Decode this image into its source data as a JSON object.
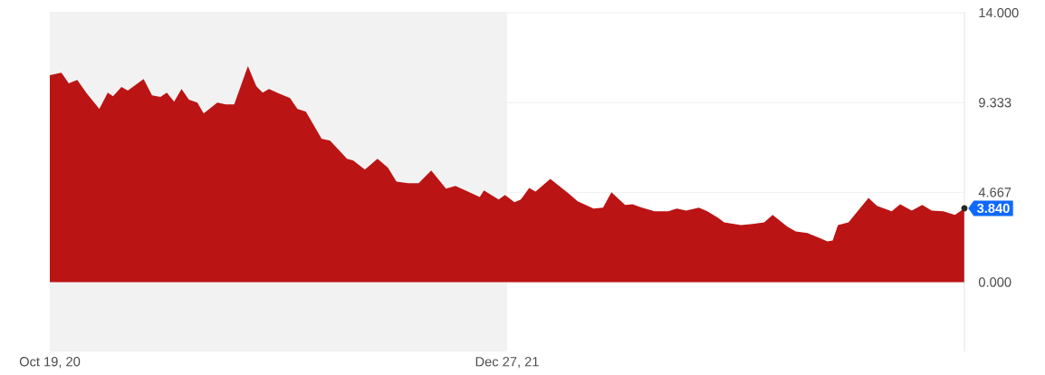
{
  "chart_data": {
    "type": "area",
    "color": "#bb1414",
    "x": [
      "2020-10-19",
      "2020-10-30",
      "2020-11-06",
      "2020-11-14",
      "2020-11-23",
      "2020-12-05",
      "2020-12-13",
      "2020-12-18",
      "2020-12-26",
      "2021-01-01",
      "2021-01-16",
      "2021-01-24",
      "2021-02-01",
      "2021-02-07",
      "2021-02-14",
      "2021-02-21",
      "2021-02-28",
      "2021-03-08",
      "2021-03-14",
      "2021-03-27",
      "2021-04-04",
      "2021-04-12",
      "2021-04-25",
      "2021-05-03",
      "2021-05-09",
      "2021-05-15",
      "2021-05-24",
      "2021-06-04",
      "2021-06-11",
      "2021-06-19",
      "2021-07-04",
      "2021-07-12",
      "2021-07-28",
      "2021-08-03",
      "2021-08-14",
      "2021-08-26",
      "2021-09-05",
      "2021-09-13",
      "2021-09-24",
      "2021-10-04",
      "2021-10-16",
      "2021-10-30",
      "2021-11-08",
      "2021-12-01",
      "2021-12-05",
      "2021-12-19",
      "2021-12-25",
      "2022-01-03",
      "2022-01-09",
      "2022-01-17",
      "2022-01-23",
      "2022-02-06",
      "2022-02-23",
      "2022-03-04",
      "2022-03-19",
      "2022-03-28",
      "2022-04-05",
      "2022-04-18",
      "2022-04-25",
      "2022-05-04",
      "2022-05-16",
      "2022-05-29",
      "2022-06-06",
      "2022-06-15",
      "2022-06-27",
      "2022-07-05",
      "2022-07-15",
      "2022-07-21",
      "2022-08-06",
      "2022-08-17",
      "2022-08-28",
      "2022-09-05",
      "2022-09-19",
      "2022-09-27",
      "2022-10-08",
      "2022-10-19",
      "2022-10-27",
      "2022-11-01",
      "2022-11-06",
      "2022-11-16",
      "2022-12-05",
      "2022-12-13",
      "2022-12-27",
      "2023-01-04",
      "2023-01-15",
      "2023-01-25",
      "2023-02-03",
      "2023-02-14",
      "2023-02-25",
      "2023-03-06"
    ],
    "values": [
      10.75,
      10.89,
      10.33,
      10.51,
      9.81,
      9.0,
      9.85,
      9.66,
      10.14,
      9.95,
      10.56,
      9.71,
      9.62,
      9.85,
      9.38,
      10.04,
      9.48,
      9.33,
      8.77,
      9.33,
      9.24,
      9.24,
      11.22,
      10.18,
      9.85,
      10.04,
      9.81,
      9.57,
      9.0,
      8.86,
      7.45,
      7.36,
      6.41,
      6.32,
      5.85,
      6.41,
      5.94,
      5.23,
      5.14,
      5.14,
      5.8,
      4.86,
      5.0,
      4.43,
      4.76,
      4.29,
      4.53,
      4.15,
      4.29,
      4.9,
      4.71,
      5.37,
      4.62,
      4.2,
      3.82,
      3.87,
      4.67,
      4.01,
      4.05,
      3.87,
      3.68,
      3.68,
      3.82,
      3.72,
      3.87,
      3.68,
      3.35,
      3.11,
      2.97,
      3.02,
      3.11,
      3.49,
      2.88,
      2.64,
      2.55,
      2.31,
      2.12,
      2.17,
      2.97,
      3.11,
      4.38,
      3.96,
      3.68,
      4.05,
      3.72,
      4.01,
      3.72,
      3.68,
      3.49,
      3.84
    ],
    "xlim": [
      "2020-10-19",
      "2023-03-06"
    ],
    "xticks": [
      {
        "value": "2020-10-19",
        "label": "Oct 19, 20"
      },
      {
        "value": "2021-12-27",
        "label": "Dec 27, 21"
      }
    ],
    "ylim": [
      -3.6,
      14.05
    ],
    "yticks": [
      {
        "value": 14,
        "label": "14.000"
      },
      {
        "value": 9.333,
        "label": "9.333"
      },
      {
        "value": 4.667,
        "label": "4.667"
      },
      {
        "value": 0,
        "label": "0.000"
      }
    ],
    "grid": "y",
    "bands": [
      {
        "axis": "x",
        "from": "2020-10-19",
        "to": "2021-12-27",
        "color": "#f2f2f2"
      }
    ],
    "annotations": [
      {
        "text": "3.840",
        "x": "2023-03-06",
        "y": 3.84
      }
    ]
  }
}
